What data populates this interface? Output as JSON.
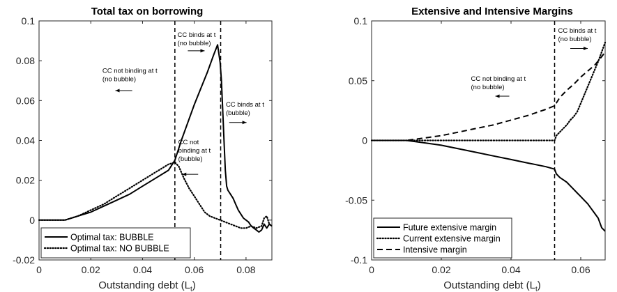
{
  "chart_data": [
    {
      "type": "line",
      "title": "Total tax on borrowing",
      "xlabel": "Outstanding debt (L",
      "xlabel_sub": "t",
      "xlabel_close": ")",
      "xlim": [
        0,
        0.09
      ],
      "ylim": [
        -0.02,
        0.1
      ],
      "xticks": [
        0,
        0.02,
        0.04,
        0.06,
        0.08
      ],
      "xtick_labels": [
        "0",
        "0.02",
        "0.04",
        "0.06",
        "0.08"
      ],
      "yticks": [
        -0.02,
        0,
        0.02,
        0.04,
        0.06,
        0.08,
        0.1
      ],
      "ytick_labels": [
        "-0.02",
        "0",
        "0.02",
        "0.04",
        "0.06",
        "0.08",
        "0.1"
      ],
      "grid": false,
      "legend_position": "bottom-left",
      "vlines": [
        0.0525,
        0.0702
      ],
      "series": [
        {
          "name": "Optimal tax: BUBBLE",
          "style": "solid",
          "x": [
            0,
            0.005,
            0.01,
            0.015,
            0.02,
            0.025,
            0.03,
            0.035,
            0.04,
            0.045,
            0.05,
            0.0525,
            0.055,
            0.0575,
            0.06,
            0.0625,
            0.065,
            0.0675,
            0.069,
            0.07,
            0.0705,
            0.071,
            0.0715,
            0.072,
            0.0725,
            0.073,
            0.074,
            0.075,
            0.076,
            0.077,
            0.078,
            0.079,
            0.08,
            0.081,
            0.082,
            0.083,
            0.084,
            0.085,
            0.086,
            0.087,
            0.088,
            0.089,
            0.09
          ],
          "y": [
            0,
            0,
            0,
            0.002,
            0.004,
            0.007,
            0.01,
            0.013,
            0.017,
            0.021,
            0.025,
            0.03,
            0.04,
            0.049,
            0.058,
            0.066,
            0.074,
            0.083,
            0.088,
            0.079,
            0.07,
            0.055,
            0.04,
            0.025,
            0.017,
            0.015,
            0.013,
            0.011,
            0.008,
            0.005,
            0.003,
            0.001,
            0,
            -0.001,
            -0.003,
            -0.004,
            -0.005,
            -0.006,
            -0.005,
            -0.002,
            -0.004,
            -0.002,
            -0.003
          ]
        },
        {
          "name": "Optimal tax: NO BUBBLE",
          "style": "dotted",
          "x": [
            0,
            0.005,
            0.01,
            0.015,
            0.02,
            0.025,
            0.03,
            0.035,
            0.04,
            0.045,
            0.05,
            0.0525,
            0.054,
            0.056,
            0.058,
            0.06,
            0.062,
            0.064,
            0.066,
            0.068,
            0.07,
            0.072,
            0.074,
            0.076,
            0.078,
            0.08,
            0.082,
            0.084,
            0.086,
            0.087,
            0.088,
            0.089,
            0.09
          ],
          "y": [
            0,
            0,
            0,
            0.002,
            0.005,
            0.008,
            0.012,
            0.016,
            0.02,
            0.024,
            0.028,
            0.029,
            0.027,
            0.021,
            0.016,
            0.012,
            0.008,
            0.004,
            0.002,
            0.001,
            0,
            -0.001,
            -0.002,
            -0.003,
            -0.004,
            -0.004,
            -0.003,
            -0.004,
            -0.003,
            0.001,
            0.002,
            -0.002,
            -0.003
          ]
        }
      ],
      "annotations": [
        {
          "lines": [
            "CC binds at t",
            "(no bubble)"
          ],
          "x": 0.0535,
          "y": 0.092,
          "arrow": "right",
          "ax": [
            0.0575,
            0.064
          ],
          "ay": 0.085
        },
        {
          "lines": [
            "CC not binding at t",
            "(no bubble)"
          ],
          "x": 0.0245,
          "y": 0.074,
          "arrow": "left",
          "ax": [
            0.0295,
            0.036
          ],
          "ay": 0.065
        },
        {
          "lines": [
            "CC binds at t",
            "(bubble)"
          ],
          "x": 0.0722,
          "y": 0.057,
          "arrow": "right",
          "ax": [
            0.0735,
            0.0802
          ],
          "ay": 0.049
        },
        {
          "lines": [
            "CC not",
            "binding at t",
            "(bubble)"
          ],
          "x": 0.0538,
          "y": 0.038,
          "arrow": "left",
          "ax": [
            0.0553,
            0.0615
          ],
          "ay": 0.023
        }
      ]
    },
    {
      "type": "line",
      "title": "Extensive and Intensive Margins",
      "xlabel": "Outstanding debt (L",
      "xlabel_sub": "t",
      "xlabel_close": ")",
      "xlim": [
        0,
        0.067
      ],
      "ylim": [
        -0.1,
        0.1
      ],
      "xticks": [
        0,
        0.02,
        0.04,
        0.06
      ],
      "xtick_labels": [
        "0",
        "0.02",
        "0.04",
        "0.06"
      ],
      "yticks": [
        -0.1,
        -0.05,
        0,
        0.05,
        0.1
      ],
      "ytick_labels": [
        "-0.1",
        "-0.05",
        "0",
        "0.05",
        "0.1"
      ],
      "grid": false,
      "legend_position": "bottom-left",
      "vlines": [
        0.0525
      ],
      "series": [
        {
          "name": "Future extensive margin",
          "style": "solid",
          "x": [
            0,
            0.005,
            0.01,
            0.015,
            0.02,
            0.025,
            0.03,
            0.035,
            0.04,
            0.045,
            0.05,
            0.0525,
            0.053,
            0.054,
            0.055,
            0.056,
            0.057,
            0.058,
            0.059,
            0.06,
            0.061,
            0.062,
            0.063,
            0.064,
            0.065,
            0.066,
            0.067
          ],
          "y": [
            0,
            0,
            0,
            -0.002,
            -0.004,
            -0.007,
            -0.01,
            -0.013,
            -0.016,
            -0.019,
            -0.022,
            -0.024,
            -0.028,
            -0.031,
            -0.033,
            -0.035,
            -0.038,
            -0.041,
            -0.044,
            -0.047,
            -0.05,
            -0.053,
            -0.057,
            -0.061,
            -0.065,
            -0.073,
            -0.076
          ]
        },
        {
          "name": "Current extensive margin",
          "style": "dotted",
          "x": [
            0,
            0.01,
            0.02,
            0.03,
            0.04,
            0.05,
            0.0525,
            0.053,
            0.054,
            0.055,
            0.056,
            0.057,
            0.058,
            0.059,
            0.06,
            0.061,
            0.062,
            0.063,
            0.064,
            0.065,
            0.066,
            0.067
          ],
          "y": [
            0,
            0,
            0,
            0,
            0,
            0,
            0,
            0.004,
            0.007,
            0.01,
            0.013,
            0.017,
            0.02,
            0.024,
            0.031,
            0.038,
            0.045,
            0.052,
            0.059,
            0.066,
            0.074,
            0.082
          ]
        },
        {
          "name": "Intensive margin",
          "style": "dashed",
          "x": [
            0,
            0.005,
            0.01,
            0.015,
            0.02,
            0.025,
            0.03,
            0.035,
            0.04,
            0.045,
            0.05,
            0.0525,
            0.054,
            0.056,
            0.058,
            0.06,
            0.062,
            0.064,
            0.066,
            0.067
          ],
          "y": [
            0,
            0,
            0,
            0.002,
            0.004,
            0.007,
            0.01,
            0.013,
            0.017,
            0.021,
            0.026,
            0.029,
            0.036,
            0.042,
            0.047,
            0.053,
            0.058,
            0.063,
            0.07,
            0.074
          ]
        }
      ],
      "annotations": [
        {
          "lines": [
            "CC binds at t",
            "(no bubble)"
          ],
          "x": 0.0535,
          "y": 0.09,
          "arrow": "right",
          "ax": [
            0.057,
            0.062
          ],
          "ay": 0.077
        },
        {
          "lines": [
            "CC not binding at t",
            "(no bubble)"
          ],
          "x": 0.0285,
          "y": 0.05,
          "arrow": "left",
          "ax": [
            0.0355,
            0.0395
          ],
          "ay": 0.037
        }
      ]
    }
  ]
}
